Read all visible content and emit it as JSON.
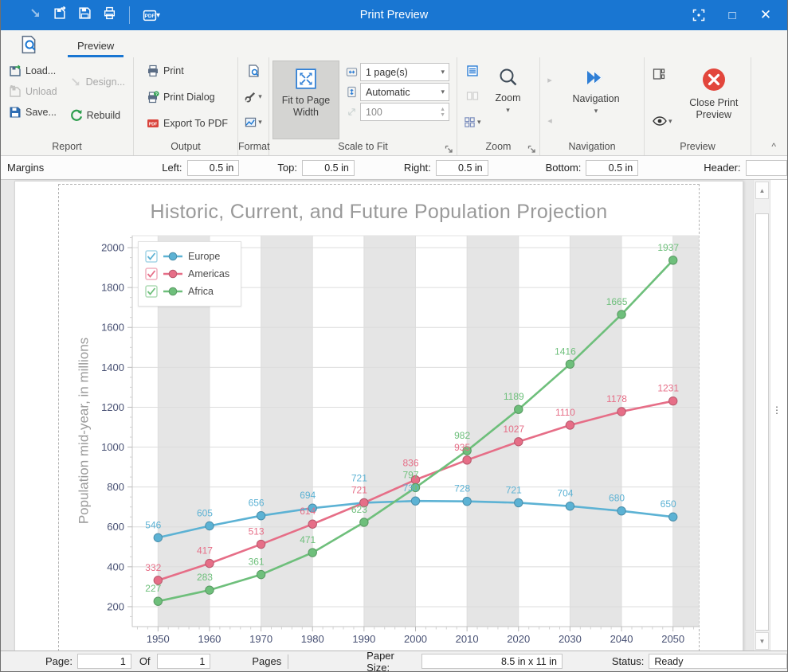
{
  "titlebar": {
    "title": "Print Preview"
  },
  "icons": {
    "dropdown_caret": "▾",
    "collapse_ribbon": "^",
    "prev_page": "◂",
    "next_page": "▸",
    "scroll_up": "▲",
    "scroll_down": "▼",
    "spinner_up": "▲",
    "spinner_down": "▼",
    "overflow_grip": "⋮",
    "maximize": "□",
    "close": "✕"
  },
  "ribbon": {
    "tab": "Preview",
    "report": {
      "label": "Report",
      "load": "Load...",
      "unload": "Unload",
      "save": "Save...",
      "design": "Design...",
      "rebuild": "Rebuild"
    },
    "output": {
      "label": "Output",
      "print": "Print",
      "print_dialog": "Print Dialog",
      "export_pdf": "Export To PDF"
    },
    "format": {
      "label": "Format"
    },
    "scale_to_fit": {
      "label": "Scale to Fit",
      "fit_to_page_width": "Fit to Page Width",
      "pages": "1 page(s)",
      "height_mode": "Automatic",
      "zoom_percent": "100"
    },
    "zoom": {
      "label": "Zoom",
      "zoom_button": "Zoom"
    },
    "navigation": {
      "label": "Navigation",
      "navigation_button": "Navigation"
    },
    "preview": {
      "label": "Preview",
      "close_button": "Close Print Preview"
    }
  },
  "margins_bar": {
    "title": "Margins",
    "left_label": "Left:",
    "left": "0.5 in",
    "top_label": "Top:",
    "top": "0.5 in",
    "right_label": "Right:",
    "right": "0.5 in",
    "bottom_label": "Bottom:",
    "bottom": "0.5 in",
    "header_label": "Header:"
  },
  "status_bar": {
    "page_label": "Page:",
    "page": "1",
    "of_label": "Of",
    "of": "1",
    "pages_label": "Pages",
    "paper_label": "Paper Size:",
    "paper": "8.5 in x 11 in",
    "status_label": "Status:",
    "status": "Ready"
  },
  "chart_data": {
    "type": "line",
    "title": "Historic, Current, and Future Population Projection",
    "ylabel": "Population mid-year, in millions",
    "x": [
      1950,
      1960,
      1970,
      1980,
      1990,
      2000,
      2010,
      2020,
      2030,
      2040,
      2050
    ],
    "series": [
      {
        "name": "Europe",
        "color": "#5CB2D4",
        "values": [
          546,
          605,
          656,
          694,
          721,
          730,
          728,
          721,
          704,
          680,
          650
        ]
      },
      {
        "name": "Americas",
        "color": "#E66E87",
        "values": [
          332,
          417,
          513,
          614,
          721,
          836,
          935,
          1027,
          1110,
          1178,
          1231
        ]
      },
      {
        "name": "Africa",
        "color": "#6EBF7B",
        "values": [
          227,
          283,
          361,
          471,
          623,
          797,
          982,
          1189,
          1416,
          1665,
          1937
        ]
      }
    ],
    "xlim": [
      1945,
      2055
    ],
    "ylim": [
      100,
      2060
    ],
    "yticks": [
      200,
      400,
      600,
      800,
      1000,
      1200,
      1400,
      1600,
      1800,
      2000
    ],
    "legend_position": "top-left",
    "grid": true,
    "band_fill": "#E5E5E5",
    "tick_label_color": "#475073",
    "title_color": "#999999"
  }
}
